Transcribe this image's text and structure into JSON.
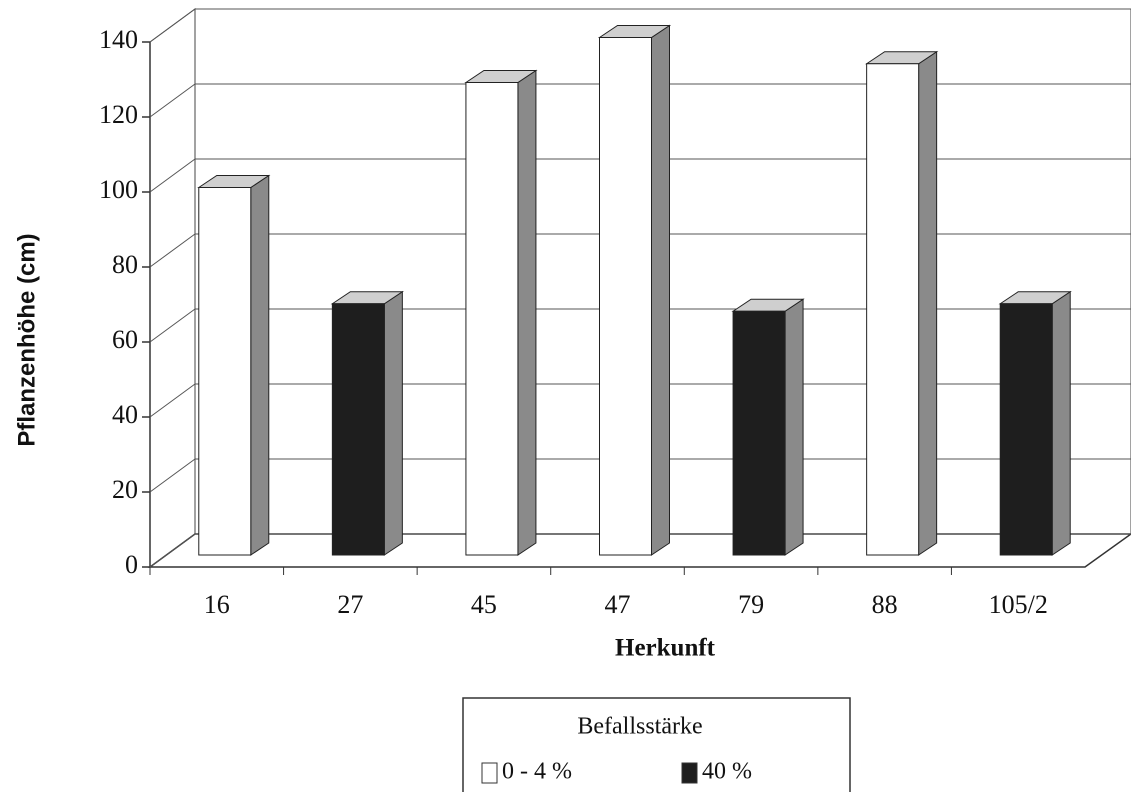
{
  "chart_data": {
    "type": "bar3d",
    "y_axis_label": "Pflanzenhöhe (cm)",
    "x_axis_label": "Herkunft",
    "legend_title": "Befallsstärke",
    "categories": [
      "16",
      "27",
      "45",
      "47",
      "79",
      "88",
      "105/2"
    ],
    "series": [
      {
        "name": "0 - 4 %",
        "color": "#ffffff",
        "values": [
          98,
          null,
          126,
          138,
          null,
          131,
          null
        ]
      },
      {
        "name": "40  %",
        "color": "#1e1e1e",
        "values": [
          null,
          67,
          null,
          null,
          65,
          null,
          67
        ]
      }
    ],
    "ylim": [
      0,
      140
    ],
    "yticks": [
      0,
      20,
      40,
      60,
      80,
      100,
      120,
      140
    ],
    "grid": true
  }
}
